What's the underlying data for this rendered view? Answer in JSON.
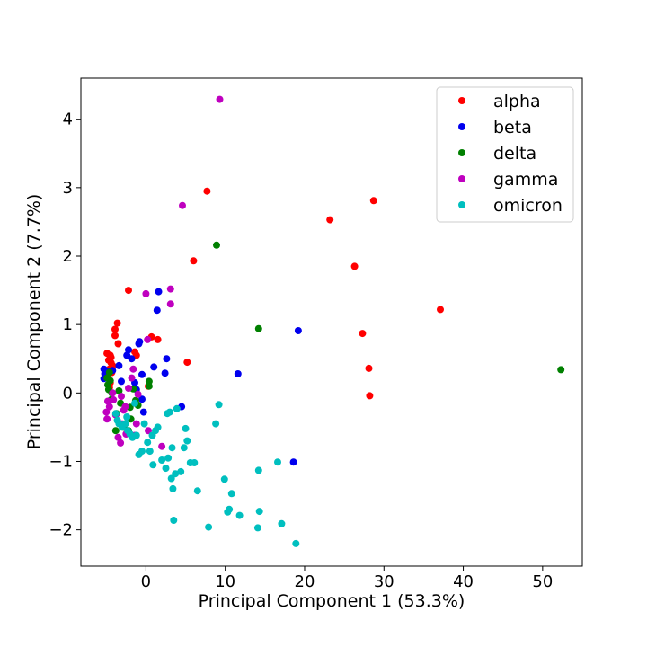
{
  "chart_data": {
    "type": "scatter",
    "title": "",
    "xlabel": "Principal Component 1 (53.3%)",
    "ylabel": "Principal Component 2 (7.7%)",
    "xlim": [
      -8.2,
      55.0
    ],
    "ylim": [
      -2.53,
      4.6
    ],
    "xticks": [
      0,
      10,
      20,
      30,
      40,
      50
    ],
    "yticks": [
      -2,
      -1,
      0,
      1,
      2,
      3,
      4
    ],
    "grid": false,
    "legend_position": "top-right",
    "series": [
      {
        "name": "alpha",
        "color": "#ff0000",
        "x": [
          -4.8,
          -4.6,
          -4.4,
          -4.5,
          -4.9,
          -4.7,
          -4.3,
          -4.2,
          -4.6,
          -4.5,
          -4.4,
          -4.8,
          -3.9,
          -3.9,
          -3.6,
          -3.5,
          -2.2,
          -1.4,
          0.7,
          1.5,
          5.2,
          6.0,
          7.7,
          23.2,
          26.3,
          28.7,
          37.1,
          27.3,
          28.1,
          28.2,
          -1.2,
          0.3
        ],
        "y": [
          0.22,
          0.35,
          0.44,
          0.55,
          0.58,
          0.48,
          0.3,
          0.4,
          0.08,
          0.15,
          0.52,
          0.28,
          0.84,
          0.93,
          1.02,
          0.72,
          1.5,
          0.6,
          0.82,
          0.78,
          0.45,
          1.93,
          2.95,
          2.53,
          1.85,
          2.81,
          1.22,
          0.87,
          0.36,
          -0.04,
          0.55,
          0.1
        ]
      },
      {
        "name": "beta",
        "color": "#0000ee",
        "x": [
          -5.3,
          -5.2,
          -5.0,
          -5.3,
          -4.9,
          -4.2,
          -3.4,
          -3.1,
          -2.2,
          -1.8,
          -1.4,
          -0.9,
          -0.8,
          -0.5,
          -0.5,
          1.0,
          1.4,
          1.6,
          2.4,
          2.6,
          4.5,
          11.6,
          19.2,
          18.6,
          -1.2,
          -2.4,
          -0.3
        ],
        "y": [
          0.35,
          0.28,
          0.24,
          0.21,
          0.32,
          0.33,
          0.4,
          0.17,
          0.63,
          0.5,
          0.15,
          0.72,
          0.75,
          0.27,
          -0.09,
          0.38,
          1.21,
          1.48,
          0.29,
          0.5,
          -0.2,
          0.28,
          0.91,
          -1.01,
          0.05,
          0.55,
          -0.28
        ]
      },
      {
        "name": "delta",
        "color": "#008000",
        "x": [
          -4.9,
          -4.8,
          -4.7,
          -4.5,
          -4.6,
          -4.3,
          -4.4,
          -3.8,
          -3.7,
          -3.2,
          -2.6,
          -2.2,
          -1.9,
          -1.6,
          -1.3,
          -1.0,
          0.4,
          0.4,
          8.9,
          14.2,
          52.3,
          -2.8,
          -3.4,
          -2.0
        ],
        "y": [
          0.22,
          0.12,
          0.05,
          0.18,
          0.3,
          0.0,
          -0.1,
          -0.55,
          -0.3,
          -0.15,
          -0.45,
          -0.55,
          -0.38,
          0.06,
          -0.11,
          -0.18,
          0.17,
          0.1,
          2.16,
          0.94,
          0.34,
          -0.5,
          0.03,
          -0.21
        ]
      },
      {
        "name": "gamma",
        "color": "#bf00bf",
        "x": [
          -5.0,
          -4.8,
          -4.9,
          -4.6,
          -4.2,
          -4.1,
          -3.8,
          -3.5,
          -3.2,
          -3.1,
          -2.8,
          -2.5,
          -2.2,
          -1.8,
          -1.6,
          -1.2,
          -1.0,
          0.0,
          0.2,
          2.0,
          3.1,
          3.1,
          4.6,
          9.3,
          -3.0,
          -2.6,
          -1.4,
          0.3
        ],
        "y": [
          -0.28,
          -0.12,
          -0.38,
          -0.2,
          0.0,
          -0.1,
          -0.32,
          -0.65,
          -0.73,
          -0.05,
          -0.25,
          -0.6,
          0.07,
          0.22,
          0.35,
          -0.45,
          -0.02,
          1.45,
          0.78,
          -0.78,
          1.52,
          1.3,
          2.74,
          4.29,
          -0.45,
          -0.2,
          -0.62,
          -0.55
        ]
      },
      {
        "name": "omicron",
        "color": "#00bfbf",
        "x": [
          -3.8,
          -3.6,
          -3.4,
          -3.0,
          -2.6,
          -2.3,
          -2.0,
          -1.7,
          -1.2,
          -0.9,
          -0.5,
          -0.2,
          0.2,
          0.5,
          0.9,
          1.2,
          1.5,
          2.0,
          2.5,
          2.8,
          3.2,
          3.4,
          3.5,
          3.7,
          3.9,
          4.4,
          4.8,
          5.0,
          5.2,
          5.6,
          6.1,
          6.5,
          7.9,
          8.8,
          9.2,
          9.9,
          10.3,
          10.5,
          10.8,
          11.8,
          14.1,
          14.3,
          16.6,
          17.1,
          18.9,
          -2.4,
          -1.4,
          0.8,
          2.7,
          3.0,
          3.3,
          14.2
        ],
        "y": [
          -0.3,
          -0.4,
          -0.45,
          -0.5,
          -0.45,
          -0.55,
          -0.6,
          -0.65,
          -0.62,
          -0.9,
          -0.85,
          -0.45,
          -0.72,
          -0.85,
          -1.05,
          -0.55,
          -0.5,
          -0.98,
          -1.1,
          -0.95,
          -1.25,
          -1.4,
          -1.86,
          -1.18,
          -0.23,
          -1.15,
          -0.8,
          -0.52,
          -0.7,
          -1.02,
          -1.02,
          -1.43,
          -1.96,
          -0.45,
          -0.17,
          -1.26,
          -1.74,
          -1.7,
          -1.47,
          -1.79,
          -1.97,
          -1.73,
          -1.01,
          -1.91,
          -2.2,
          -0.35,
          -0.15,
          -0.62,
          -0.3,
          -0.28,
          -0.8,
          -1.13
        ]
      }
    ]
  }
}
